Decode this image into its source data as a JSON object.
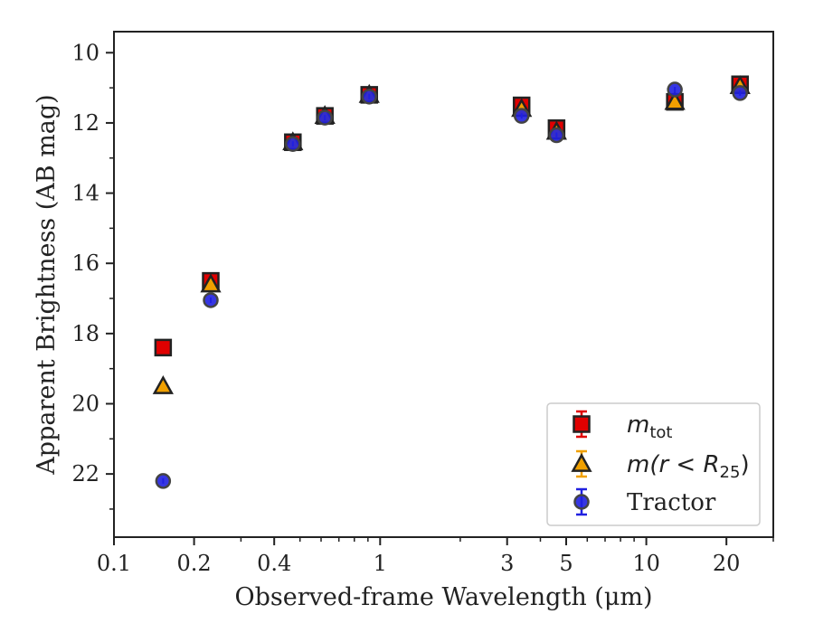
{
  "chart_data": {
    "type": "scatter",
    "title": "",
    "xlabel": "Observed-frame Wavelength (μm)",
    "ylabel": "Apparent Brightness (AB mag)",
    "xscale": "log",
    "xlim": [
      0.1,
      30
    ],
    "ylim": [
      23.8,
      9.4
    ],
    "y_inverted": true,
    "x_ticks": [
      0.1,
      0.2,
      0.4,
      1,
      3,
      5,
      10,
      20
    ],
    "x_tick_labels": [
      "0.1",
      "0.2",
      "0.4",
      "1",
      "3",
      "5",
      "10",
      "20"
    ],
    "y_ticks": [
      10,
      12,
      14,
      16,
      18,
      20,
      22
    ],
    "y_tick_labels": [
      "10",
      "12",
      "14",
      "16",
      "18",
      "20",
      "22"
    ],
    "grid": false,
    "legend_position": "bottom-right",
    "x": [
      0.153,
      0.231,
      0.47,
      0.62,
      0.91,
      3.4,
      4.6,
      12.8,
      22.5
    ],
    "series": [
      {
        "name": "m_tot",
        "marker": "square",
        "color": "#e00000",
        "values": [
          18.4,
          16.5,
          12.55,
          11.8,
          11.2,
          11.5,
          12.15,
          11.4,
          10.9
        ]
      },
      {
        "name": "m(r < R25)",
        "marker": "triangle",
        "color": "#f0a000",
        "values": [
          19.5,
          16.6,
          12.55,
          11.8,
          11.2,
          11.6,
          12.25,
          11.4,
          10.95
        ]
      },
      {
        "name": "Tractor",
        "marker": "circle",
        "color": "#2020e0",
        "values": [
          22.2,
          17.05,
          12.6,
          11.85,
          11.25,
          11.8,
          12.35,
          11.05,
          11.15
        ]
      }
    ],
    "legend": {
      "entries": [
        {
          "base": "m",
          "sub": "tot",
          "suffix": ""
        },
        {
          "base": "m(r < R",
          "sub": "25",
          "suffix": ")"
        },
        {
          "base": "Tractor",
          "sub": "",
          "suffix": ""
        }
      ]
    }
  }
}
